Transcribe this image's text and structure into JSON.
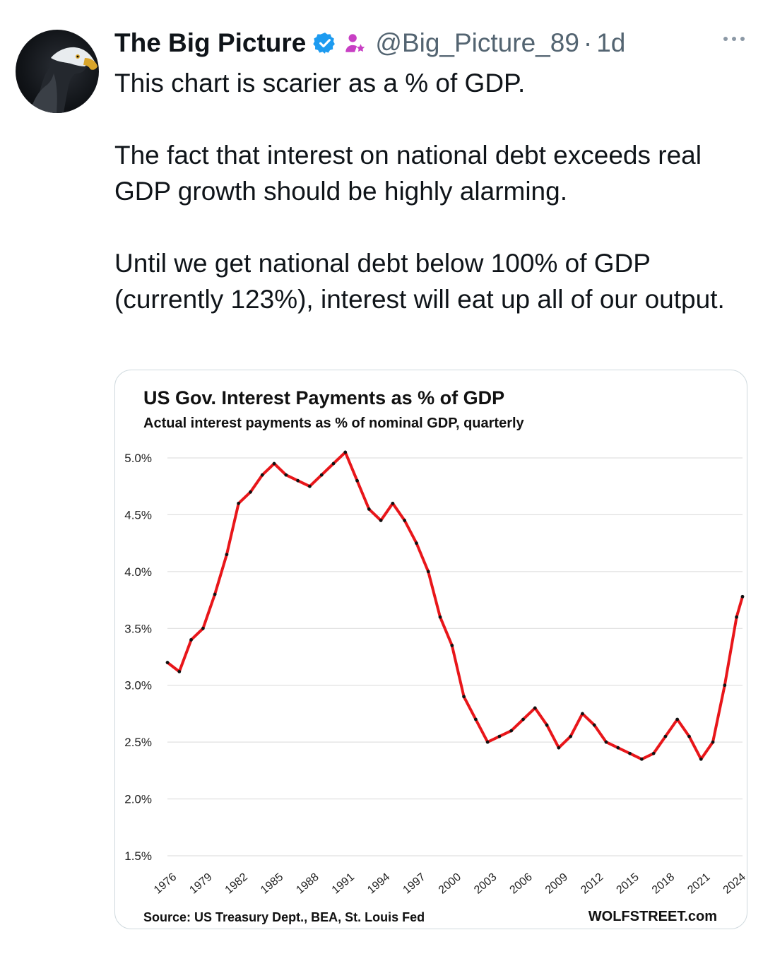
{
  "tweet": {
    "author_name": "The Big Picture",
    "handle": "@Big_Picture_89",
    "separator": "·",
    "time": "1d",
    "icons": [
      "eagle-avatar",
      "verified-badge-icon",
      "automated-account-icon",
      "more-options-icon"
    ],
    "text": [
      "This chart is scarier as a % of GDP.",
      "The fact that interest on national debt exceeds real GDP growth should be highly alarming.",
      "Until we get national debt below 100% of GDP (currently 123%), interest will eat up all of our output."
    ],
    "verified_color": "#1d9bf0"
  },
  "chart": {
    "title": "US Gov. Interest Payments as % of GDP",
    "subtitle": "Actual interest payments as % of nominal GDP, quarterly",
    "source": "Source: US Treasury Dept., BEA, St. Louis Fed",
    "brand": "WOLFSTREET.com"
  },
  "chart_data": {
    "type": "line",
    "title": "US Gov. Interest Payments as % of GDP",
    "subtitle": "Actual interest payments as % of nominal GDP, quarterly",
    "xlabel": "",
    "ylabel": "",
    "ylim": [
      1.5,
      5.0
    ],
    "yticks": [
      "1.5%",
      "2.0%",
      "2.5%",
      "3.0%",
      "3.5%",
      "4.0%",
      "4.5%",
      "5.0%"
    ],
    "xticks": [
      "1976",
      "1979",
      "1982",
      "1985",
      "1988",
      "1991",
      "1994",
      "1997",
      "2000",
      "2003",
      "2006",
      "2009",
      "2012",
      "2015",
      "2018",
      "2021",
      "2024"
    ],
    "grid": true,
    "line_color": "#e8161a",
    "marker_color": "#111111",
    "series": [
      {
        "x": [
          1976.0,
          1977.0,
          1978.0,
          1979.0,
          1980.0,
          1981.0,
          1982.0,
          1983.0,
          1984.0,
          1985.0,
          1986.0,
          1987.0,
          1988.0,
          1989.0,
          1990.0,
          1991.0,
          1992.0,
          1993.0,
          1994.0,
          1995.0,
          1996.0,
          1997.0,
          1998.0,
          1999.0,
          2000.0,
          2001.0,
          2002.0,
          2003.0,
          2004.0,
          2005.0,
          2006.0,
          2007.0,
          2008.0,
          2009.0,
          2010.0,
          2011.0,
          2012.0,
          2013.0,
          2014.0,
          2015.0,
          2016.0,
          2017.0,
          2018.0,
          2019.0,
          2020.0,
          2021.0,
          2022.0,
          2023.0,
          2024.0,
          2024.5
        ],
        "y": [
          3.2,
          3.12,
          3.4,
          3.5,
          3.8,
          4.15,
          4.6,
          4.7,
          4.85,
          4.95,
          4.85,
          4.8,
          4.75,
          4.85,
          4.95,
          5.05,
          4.8,
          4.55,
          4.45,
          4.6,
          4.45,
          4.25,
          4.0,
          3.6,
          3.35,
          2.9,
          2.7,
          2.5,
          2.55,
          2.6,
          2.7,
          2.8,
          2.65,
          2.45,
          2.55,
          2.75,
          2.65,
          2.5,
          2.45,
          2.4,
          2.35,
          2.4,
          2.55,
          2.7,
          2.55,
          2.35,
          2.5,
          3.0,
          3.6,
          3.78
        ]
      }
    ]
  }
}
